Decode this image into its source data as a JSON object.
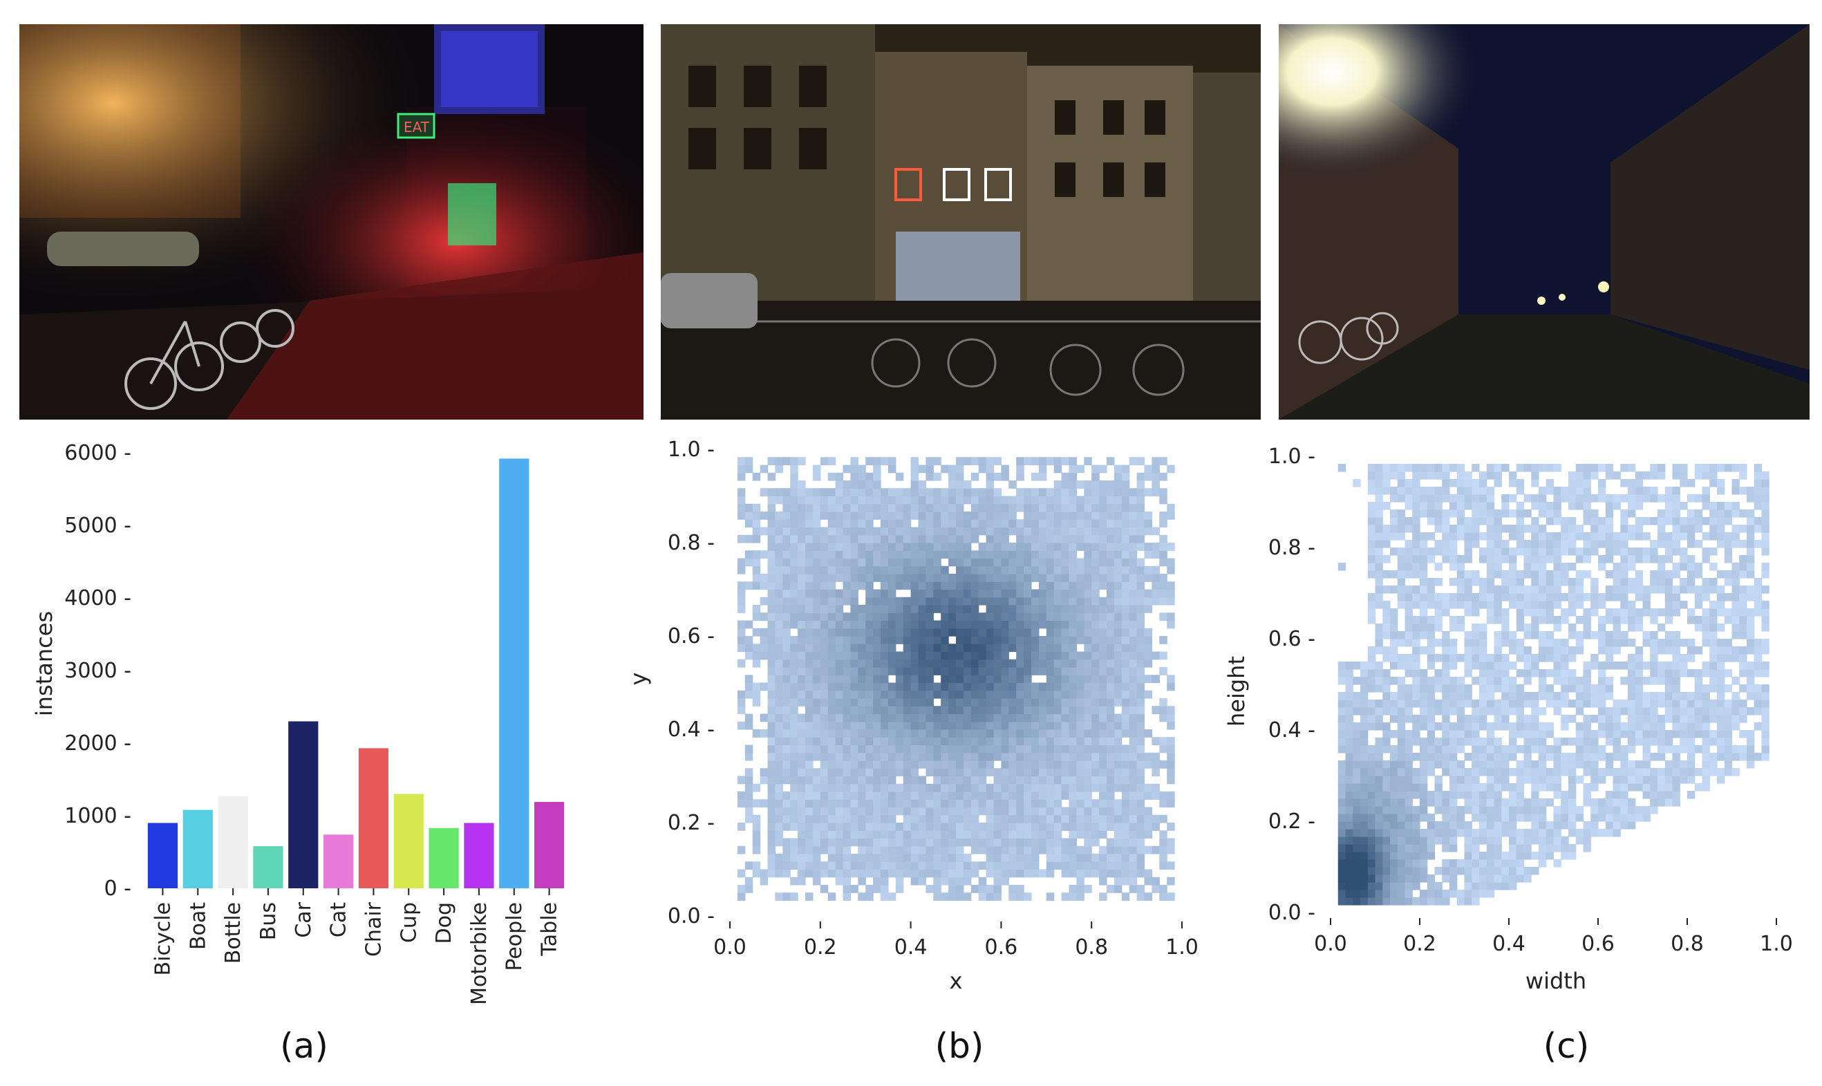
{
  "chart_data": [
    {
      "type": "bar",
      "panel_label": "(a)",
      "categories": [
        "Bicycle",
        "Boat",
        "Bottle",
        "Bus",
        "Car",
        "Cat",
        "Chair",
        "Cup",
        "Dog",
        "Motorbike",
        "People",
        "Table"
      ],
      "values": [
        900,
        1080,
        1270,
        580,
        2300,
        740,
        1930,
        1300,
        830,
        900,
        5920,
        1190
      ],
      "colors": [
        "#1f3be0",
        "#56cfe3",
        "#efefef",
        "#5fd6b8",
        "#1c2466",
        "#e87bd9",
        "#e85a5a",
        "#d6e84f",
        "#66e66b",
        "#b533f0",
        "#4fadf2",
        "#c43dc0"
      ],
      "ylabel": "instances",
      "xlabel": "",
      "ylim": [
        0,
        6000
      ],
      "yticks": [
        0,
        1000,
        2000,
        3000,
        4000,
        5000,
        6000
      ],
      "grid": false,
      "legend": "none"
    },
    {
      "type": "heatmap",
      "panel_label": "(b)",
      "xlabel": "x",
      "ylabel": "y",
      "xlim": [
        0,
        1
      ],
      "ylim": [
        0,
        1
      ],
      "xticks": [
        "0.0",
        "0.2",
        "0.4",
        "0.6",
        "0.8",
        "1.0"
      ],
      "yticks": [
        "0.0",
        "0.2",
        "0.4",
        "0.6",
        "0.8",
        "1.0"
      ],
      "density": "2D histogram of object centers; densest near x≈0.5, y≈0.5–0.6, sparse near edges",
      "colormap": [
        "#c6dbf7",
        "#2f4f73"
      ]
    },
    {
      "type": "heatmap",
      "panel_label": "(c)",
      "xlabel": "width",
      "ylabel": "height",
      "xlim": [
        0,
        1
      ],
      "ylim": [
        0,
        1
      ],
      "xticks": [
        "0.0",
        "0.2",
        "0.4",
        "0.6",
        "0.8",
        "1.0"
      ],
      "yticks": [
        "0.0",
        "0.2",
        "0.4",
        "0.6",
        "0.8",
        "1.0"
      ],
      "density": "2D histogram of box sizes; densest at small width and height near 0.05, spreading upward and rightward",
      "colormap": [
        "#c6dbf7",
        "#2f4f73"
      ]
    }
  ],
  "photos": [
    {
      "icon": "night-street-neon-photo-icon",
      "sign_text": "EAT"
    },
    {
      "icon": "night-storefront-bicycles-photo-icon"
    },
    {
      "icon": "night-alley-streetlamps-photo-icon"
    }
  ]
}
